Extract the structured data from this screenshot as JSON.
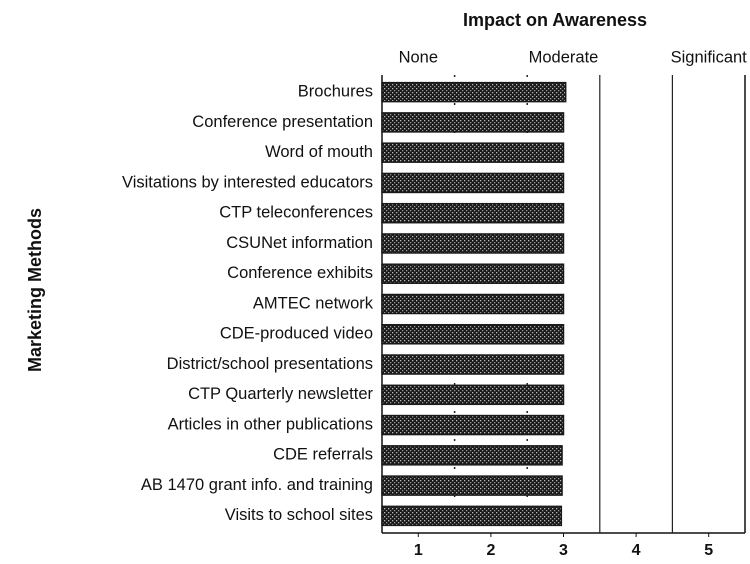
{
  "chart_data": {
    "type": "hbar",
    "title": "Impact on Awareness",
    "ylabel": "Marketing Methods",
    "categories": [
      "Brochures",
      "Conference presentation",
      "Word of mouth",
      "Visitations by interested educators",
      "CTP teleconferences",
      "CSUNet information",
      "Conference exhibits",
      "AMTEC network",
      "CDE-produced video",
      "District/school  presentations",
      "CTP Quarterly newsletter",
      "Articles in other publications",
      "CDE referrals",
      "AB 1470 grant info. and training",
      "Visits to school sites"
    ],
    "values": [
      3.03,
      3.0,
      3.0,
      3.0,
      3.0,
      3.0,
      3.0,
      3.0,
      3.0,
      3.0,
      3.0,
      3.0,
      2.98,
      2.98,
      2.97
    ],
    "color": "#1a1a1a",
    "xlim": [
      0.5,
      5.5
    ],
    "xticks": [
      1,
      2,
      3,
      4,
      5
    ],
    "x2ticks": [
      {
        "value": 1,
        "label": "None"
      },
      {
        "value": 3,
        "label": "Moderate"
      },
      {
        "value": 5,
        "label": "Significant"
      }
    ],
    "grid": true
  }
}
